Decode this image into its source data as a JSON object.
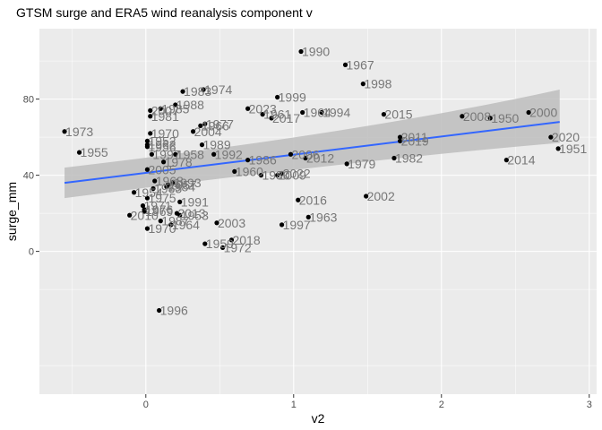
{
  "chart_data": {
    "type": "scatter",
    "title": "GTSM surge and ERA5 wind reanalysis component v",
    "xlabel": "v2",
    "ylabel": "surge_mm",
    "xlim": [
      -0.72,
      3.05
    ],
    "ylim": [
      -75,
      117
    ],
    "x_ticks": [
      0,
      1,
      2,
      3
    ],
    "y_ticks": [
      0,
      40,
      80
    ],
    "grid": true,
    "point_color": "#000000",
    "label_color": "#777777",
    "panel_color": "#ebebeb",
    "fit_line": {
      "method": "linear regression",
      "color": "#3366ff",
      "band_color": "#bdbdbd",
      "x": [
        -0.55,
        2.8
      ],
      "y": [
        36,
        68
      ],
      "band_lower": [
        28,
        57
      ],
      "band_upper": [
        44,
        85
      ]
    },
    "points": [
      {
        "label": "1990",
        "x": 1.05,
        "y": 105
      },
      {
        "label": "1967",
        "x": 1.35,
        "y": 98
      },
      {
        "label": "1998",
        "x": 1.47,
        "y": 88
      },
      {
        "label": "1974",
        "x": 0.39,
        "y": 85
      },
      {
        "label": "1983",
        "x": 0.25,
        "y": 84
      },
      {
        "label": "1999",
        "x": 0.89,
        "y": 81
      },
      {
        "label": "1988",
        "x": 0.2,
        "y": 77
      },
      {
        "label": "1985",
        "x": 0.1,
        "y": 75
      },
      {
        "label": "2023",
        "x": 0.69,
        "y": 75
      },
      {
        "label": "2007",
        "x": 0.03,
        "y": 74
      },
      {
        "label": "1964",
        "x": 1.06,
        "y": 73
      },
      {
        "label": "1994",
        "x": 1.19,
        "y": 73
      },
      {
        "label": "2000",
        "x": 2.59,
        "y": 73
      },
      {
        "label": "1961",
        "x": 0.79,
        "y": 72
      },
      {
        "label": "2015",
        "x": 1.61,
        "y": 72
      },
      {
        "label": "1981",
        "x": 0.03,
        "y": 71
      },
      {
        "label": "2008",
        "x": 2.14,
        "y": 71
      },
      {
        "label": "1950",
        "x": 2.33,
        "y": 70
      },
      {
        "label": "2017",
        "x": 0.85,
        "y": 70
      },
      {
        "label": "1977",
        "x": 0.4,
        "y": 67
      },
      {
        "label": "1966",
        "x": 0.37,
        "y": 66
      },
      {
        "label": "1973",
        "x": -0.55,
        "y": 63
      },
      {
        "label": "2004",
        "x": 0.32,
        "y": 63
      },
      {
        "label": "1970",
        "x": 0.03,
        "y": 62
      },
      {
        "label": "2011",
        "x": 1.72,
        "y": 60
      },
      {
        "label": "2020",
        "x": 2.74,
        "y": 60
      },
      {
        "label": "1952",
        "x": 0.01,
        "y": 58
      },
      {
        "label": "2019",
        "x": 1.72,
        "y": 58
      },
      {
        "label": "1962",
        "x": 0.01,
        "y": 56
      },
      {
        "label": "1989",
        "x": 0.38,
        "y": 56
      },
      {
        "label": "1956",
        "x": 0.01,
        "y": 55
      },
      {
        "label": "1951",
        "x": 2.79,
        "y": 54
      },
      {
        "label": "1955",
        "x": -0.45,
        "y": 52
      },
      {
        "label": "1992",
        "x": 0.46,
        "y": 51
      },
      {
        "label": "1997",
        "x": 0.04,
        "y": 51
      },
      {
        "label": "1958",
        "x": 0.2,
        "y": 51
      },
      {
        "label": "2006",
        "x": 0.98,
        "y": 51
      },
      {
        "label": "2012",
        "x": 1.08,
        "y": 49
      },
      {
        "label": "1982",
        "x": 1.68,
        "y": 49
      },
      {
        "label": "2014",
        "x": 2.44,
        "y": 48
      },
      {
        "label": "1986",
        "x": 0.69,
        "y": 48
      },
      {
        "label": "1978",
        "x": 0.12,
        "y": 47
      },
      {
        "label": "1979",
        "x": 1.36,
        "y": 46
      },
      {
        "label": "2005",
        "x": 0.01,
        "y": 43
      },
      {
        "label": "1960",
        "x": 0.6,
        "y": 42
      },
      {
        "label": "1980",
        "x": 0.78,
        "y": 40
      },
      {
        "label": "2022",
        "x": 0.92,
        "y": 41
      },
      {
        "label": "2009",
        "x": 0.89,
        "y": 40
      },
      {
        "label": "1968",
        "x": 0.06,
        "y": 37
      },
      {
        "label": "1993",
        "x": 0.18,
        "y": 36
      },
      {
        "label": "1957",
        "x": 0.15,
        "y": 35
      },
      {
        "label": "1984",
        "x": 0.14,
        "y": 34
      },
      {
        "label": "1965",
        "x": 0.05,
        "y": 33
      },
      {
        "label": "1954",
        "x": -0.08,
        "y": 31
      },
      {
        "label": "2002",
        "x": 1.49,
        "y": 29
      },
      {
        "label": "1975",
        "x": 0.01,
        "y": 28
      },
      {
        "label": "2016",
        "x": 1.03,
        "y": 27
      },
      {
        "label": "1991",
        "x": 0.23,
        "y": 26
      },
      {
        "label": "1971",
        "x": -0.02,
        "y": 24
      },
      {
        "label": "1976",
        "x": -0.01,
        "y": 22
      },
      {
        "label": "1969",
        "x": -0.01,
        "y": 21
      },
      {
        "label": "2013",
        "x": 0.21,
        "y": 20
      },
      {
        "label": "1953",
        "x": 0.23,
        "y": 19
      },
      {
        "label": "2010",
        "x": -0.11,
        "y": 19
      },
      {
        "label": "1963",
        "x": 1.1,
        "y": 18
      },
      {
        "label": "1987",
        "x": 0.1,
        "y": 16
      },
      {
        "label": "2003",
        "x": 0.48,
        "y": 15
      },
      {
        "label": "1964",
        "x": 0.17,
        "y": 14
      },
      {
        "label": "1997",
        "x": 0.92,
        "y": 14
      },
      {
        "label": "1970",
        "x": 0.01,
        "y": 12
      },
      {
        "label": "2018",
        "x": 0.58,
        "y": 6
      },
      {
        "label": "1959",
        "x": 0.4,
        "y": 4
      },
      {
        "label": "1972",
        "x": 0.52,
        "y": 2
      },
      {
        "label": "1996",
        "x": 0.09,
        "y": -31
      }
    ]
  }
}
